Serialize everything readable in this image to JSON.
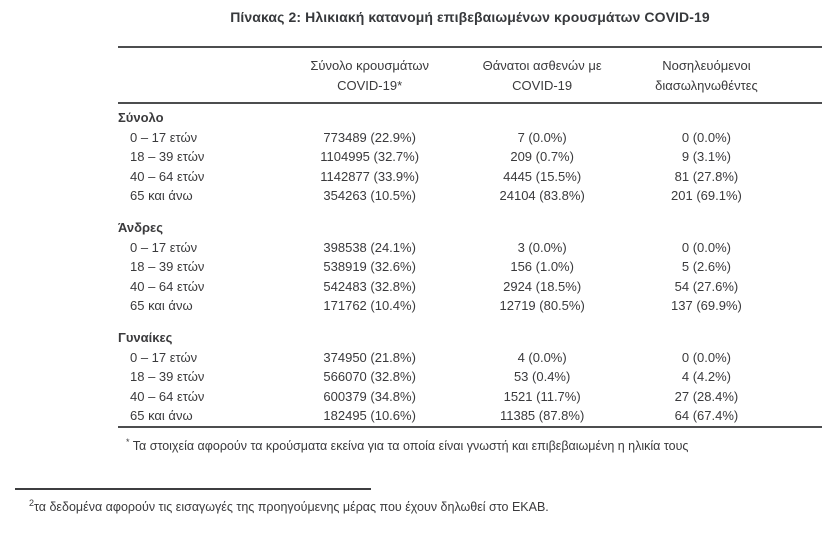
{
  "title": "Πίνακας 2: Ηλικιακή κατανομή επιβεβαιωμένων κρουσμάτων COVID-19",
  "table": {
    "col_headers": [
      {
        "line1": "Σύνολο κρουσμάτων",
        "line2": "COVID-19*"
      },
      {
        "line1": "Θάνατοι ασθενών με",
        "line2": "COVID-19"
      },
      {
        "line1": "Νοσηλευόμενοι",
        "line2": "διασωληνωθέντες"
      }
    ],
    "sections": [
      {
        "label": "Σύνολο",
        "rows": [
          {
            "age": "0 – 17 ετών",
            "cases": "773489 (22.9%)",
            "deaths": "7 (0.0%)",
            "intubated": "0 (0.0%)"
          },
          {
            "age": "18 – 39 ετών",
            "cases": "1104995 (32.7%)",
            "deaths": "209 (0.7%)",
            "intubated": "9 (3.1%)"
          },
          {
            "age": "40 – 64 ετών",
            "cases": "1142877 (33.9%)",
            "deaths": "4445 (15.5%)",
            "intubated": "81 (27.8%)"
          },
          {
            "age": "65 και άνω",
            "cases": "354263 (10.5%)",
            "deaths": "24104 (83.8%)",
            "intubated": "201 (69.1%)"
          }
        ]
      },
      {
        "label": "Άνδρες",
        "rows": [
          {
            "age": "0 – 17 ετών",
            "cases": "398538 (24.1%)",
            "deaths": "3 (0.0%)",
            "intubated": "0 (0.0%)"
          },
          {
            "age": "18 – 39 ετών",
            "cases": "538919 (32.6%)",
            "deaths": "156 (1.0%)",
            "intubated": "5 (2.6%)"
          },
          {
            "age": "40 – 64 ετών",
            "cases": "542483 (32.8%)",
            "deaths": "2924 (18.5%)",
            "intubated": "54 (27.6%)"
          },
          {
            "age": "65 και άνω",
            "cases": "171762 (10.4%)",
            "deaths": "12719 (80.5%)",
            "intubated": "137 (69.9%)"
          }
        ]
      },
      {
        "label": "Γυναίκες",
        "rows": [
          {
            "age": "0 – 17 ετών",
            "cases": "374950 (21.8%)",
            "deaths": "4 (0.0%)",
            "intubated": "0 (0.0%)"
          },
          {
            "age": "18 – 39 ετών",
            "cases": "566070 (32.8%)",
            "deaths": "53 (0.4%)",
            "intubated": "4 (4.2%)"
          },
          {
            "age": "40 – 64 ετών",
            "cases": "600379 (34.8%)",
            "deaths": "1521 (11.7%)",
            "intubated": "27 (28.4%)"
          },
          {
            "age": "65 και άνω",
            "cases": "182495 (10.6%)",
            "deaths": "11385 (87.8%)",
            "intubated": "64 (67.4%)"
          }
        ]
      }
    ]
  },
  "footnotes": {
    "f1_marker": "*",
    "f1_text": "Τα στοιχεία αφορούν τα κρούσματα εκείνα για τα οποία είναι γνωστή και επιβεβαιωμένη η ηλικία τους",
    "f2_marker": "2",
    "f2_text": "τα δεδομένα αφορούν τις εισαγωγές της προηγούμενης μέρας που έχουν δηλωθεί στο ΕΚΑΒ."
  },
  "colors": {
    "text": "#3a3a3c",
    "rule": "#4c4d4f",
    "background": "#ffffff"
  }
}
